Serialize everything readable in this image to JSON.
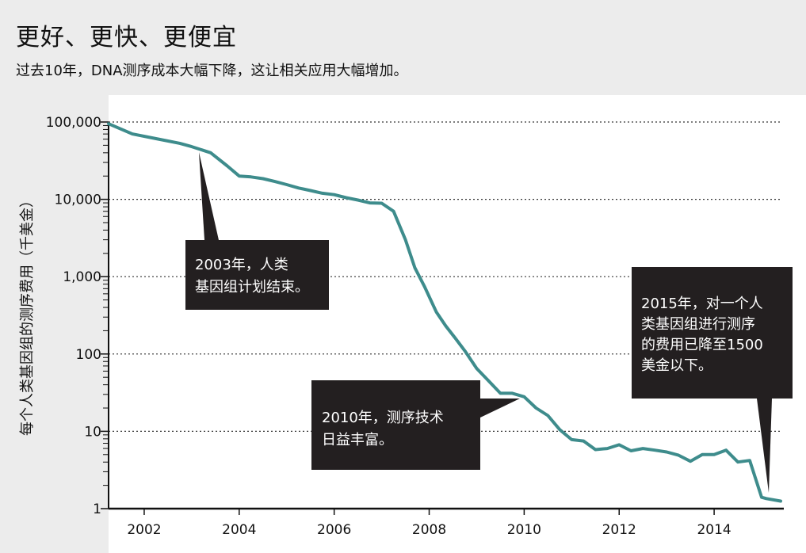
{
  "chart_data": {
    "type": "line",
    "title": "更好、更快、更便宜",
    "subtitle": "过去10年，DNA测序成本大幅下降，这让相关应用大幅增加。",
    "ylabel": "每个人类基因组的测序费用（千美金）",
    "xlabel": "",
    "y_scale": "log",
    "ylim": [
      1,
      100000
    ],
    "xlim": [
      2001.25,
      2015.4
    ],
    "grid": "horizontal dotted",
    "line_color": "#3e8c8c",
    "y_ticks": [
      {
        "value": 1,
        "label": "1"
      },
      {
        "value": 10,
        "label": "10"
      },
      {
        "value": 100,
        "label": "100"
      },
      {
        "value": 1000,
        "label": "1,000"
      },
      {
        "value": 10000,
        "label": "10,000"
      },
      {
        "value": 100000,
        "label": "100,000"
      }
    ],
    "x_ticks": [
      {
        "value": 2002,
        "label": "2002"
      },
      {
        "value": 2004,
        "label": "2004"
      },
      {
        "value": 2006,
        "label": "2006"
      },
      {
        "value": 2008,
        "label": "2008"
      },
      {
        "value": 2010,
        "label": "2010"
      },
      {
        "value": 2012,
        "label": "2012"
      },
      {
        "value": 2014,
        "label": "2014"
      }
    ],
    "series": [
      {
        "x": [
          2001.25,
          2001.75,
          2002.25,
          2002.75,
          2003.0,
          2003.4,
          2003.75,
          2004.0,
          2004.25,
          2004.5,
          2004.75,
          2005.0,
          2005.25,
          2005.5,
          2005.75,
          2006.0,
          2006.25,
          2006.5,
          2006.75,
          2007.0,
          2007.25,
          2007.5,
          2007.7,
          2007.9,
          2008.15,
          2008.35,
          2008.55,
          2008.75,
          2009.0,
          2009.25,
          2009.5,
          2009.75,
          2010.0,
          2010.25,
          2010.5,
          2010.75,
          2011.0,
          2011.25,
          2011.5,
          2011.75,
          2012.0,
          2012.25,
          2012.5,
          2012.75,
          2013.0,
          2013.25,
          2013.5,
          2013.75,
          2014.0,
          2014.25,
          2014.5,
          2014.75,
          2015.0,
          2015.1,
          2015.4
        ],
        "values": [
          95000,
          70000,
          61000,
          53000,
          48000,
          40000,
          27000,
          20000,
          19500,
          18500,
          17000,
          15500,
          14000,
          13000,
          12000,
          11500,
          10500,
          9800,
          9000,
          8900,
          7000,
          3000,
          1300,
          750,
          350,
          230,
          160,
          110,
          65,
          45,
          31,
          31,
          28,
          20,
          16,
          10.5,
          7.8,
          7.5,
          5.8,
          6.0,
          6.7,
          5.6,
          6.0,
          5.7,
          5.4,
          4.9,
          4.1,
          5.0,
          5.0,
          5.7,
          4.0,
          4.2,
          1.4,
          1.35,
          1.25
        ]
      }
    ],
    "annotations": [
      {
        "lines": [
          "2003年，人类",
          "基因组计划结束。"
        ]
      },
      {
        "lines": [
          "2010年，测序技术",
          "日益丰富。"
        ]
      },
      {
        "lines": [
          "2015年，对一个人",
          "类基因组进行测序",
          "的费用已降至1500",
          "美金以下。"
        ]
      }
    ]
  }
}
